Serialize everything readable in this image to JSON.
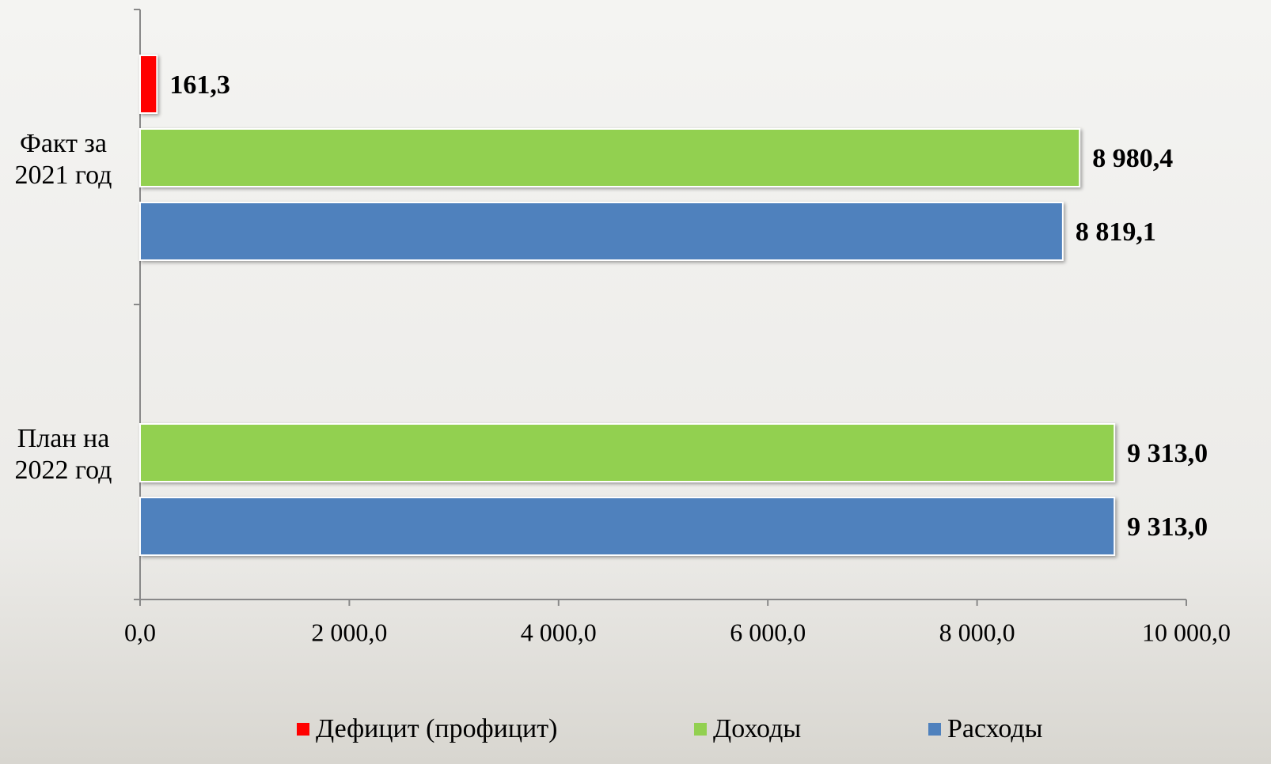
{
  "chart_data": {
    "type": "hbar",
    "categories": [
      "Факт за 2021 год",
      "План на 2022 год"
    ],
    "series": [
      {
        "name": "Дефицит (профицит)",
        "color": "#ff0000",
        "values": [
          161.3,
          null
        ],
        "value_labels": [
          "161,3",
          null
        ]
      },
      {
        "name": "Доходы",
        "color": "#92d050",
        "values": [
          8980.4,
          9313.0
        ],
        "value_labels": [
          "8 980,4",
          "9 313,0"
        ]
      },
      {
        "name": "Расходы",
        "color": "#4f81bd",
        "values": [
          8819.1,
          9313.0
        ],
        "value_labels": [
          "8 819,1",
          "9 313,0"
        ]
      }
    ],
    "xlim": [
      0,
      10000
    ],
    "xticks": [
      {
        "value": 0,
        "label": "0,0"
      },
      {
        "value": 2000,
        "label": "2 000,0"
      },
      {
        "value": 4000,
        "label": "4 000,0"
      },
      {
        "value": 6000,
        "label": "6 000,0"
      },
      {
        "value": 8000,
        "label": "8 000,0"
      },
      {
        "value": 10000,
        "label": "10 000,0"
      }
    ],
    "legend": "bottom"
  }
}
